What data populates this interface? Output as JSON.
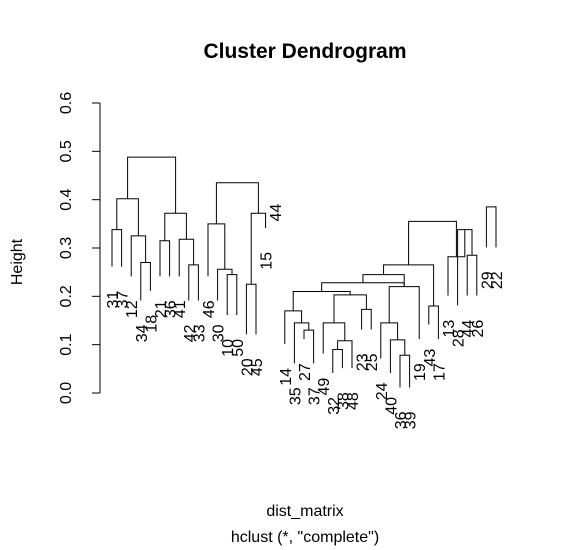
{
  "chart_data": {
    "type": "dendrogram",
    "title": "Cluster Dendrogram",
    "xlabel": "dist_matrix",
    "sublabel": "hclust (*, \"complete\")",
    "ylabel": "Height",
    "ylim": [
      0,
      0.6
    ],
    "yticks": [
      0.0,
      0.1,
      0.2,
      0.3,
      0.4,
      0.5,
      0.6
    ],
    "ytick_labels": [
      "0.0",
      "0.1",
      "0.2",
      "0.3",
      "0.4",
      "0.5",
      "0.6"
    ],
    "grid": false,
    "leaf_order": [
      "31",
      "37",
      "12",
      "34",
      "18",
      "21",
      "36",
      "41",
      "42",
      "33",
      "46",
      "30",
      "10",
      "50",
      "20",
      "45",
      "15",
      "44",
      "14",
      "35",
      "27",
      "37",
      "49",
      "32",
      "38",
      "48",
      "23",
      "25",
      "24",
      "40",
      "36",
      "39",
      "19",
      "43",
      "17",
      "13",
      "28",
      "44",
      "26",
      "29",
      "22"
    ],
    "leaf_label_bottom": [
      0.22,
      0.22,
      0.2,
      0.15,
      0.17,
      0.2,
      0.2,
      0.2,
      0.15,
      0.15,
      0.2,
      0.15,
      0.12,
      0.12,
      0.08,
      0.08,
      0.3,
      0.4,
      0.06,
      0.02,
      0.07,
      0.02,
      0.04,
      0.0,
      0.01,
      0.01,
      0.09,
      0.09,
      0.03,
      0.0,
      -0.03,
      -0.03,
      0.07,
      0.1,
      0.07,
      0.16,
      0.14,
      0.16,
      0.16,
      0.26,
      0.26
    ],
    "merges": [
      {
        "h": 0.338,
        "l": 0,
        "r": 1
      },
      {
        "h": 0.27,
        "l": 3,
        "r": 4
      },
      {
        "h": 0.325,
        "l": 2,
        "r": "m1"
      },
      {
        "h": 0.402,
        "l": "m0",
        "r": "m2"
      },
      {
        "h": 0.315,
        "l": 5,
        "r": 6
      },
      {
        "h": 0.265,
        "l": 8,
        "r": 9
      },
      {
        "h": 0.318,
        "l": 7,
        "r": "m5"
      },
      {
        "h": 0.372,
        "l": "m4",
        "r": "m6"
      },
      {
        "h": 0.488,
        "l": "m3",
        "r": "m7"
      },
      {
        "h": 0.245,
        "l": 12,
        "r": 13
      },
      {
        "h": 0.256,
        "l": 11,
        "r": "m9"
      },
      {
        "h": 0.35,
        "l": 10,
        "r": "m10"
      },
      {
        "h": 0.225,
        "l": 14,
        "r": 15
      },
      {
        "h": 0.372,
        "l": 16,
        "r": "m12"
      },
      {
        "h": 0.435,
        "l": "m11",
        "r": "m13"
      },
      {
        "h": 0.13,
        "l": 20,
        "r": 21
      },
      {
        "h": 0.145,
        "l": 19,
        "r": "m15"
      },
      {
        "h": 0.17,
        "l": 18,
        "r": "m16"
      },
      {
        "h": 0.09,
        "l": 23,
        "r": 24
      },
      {
        "h": 0.108,
        "l": "m18",
        "r": 25
      },
      {
        "h": 0.145,
        "l": 22,
        "r": "m19"
      },
      {
        "h": 0.173,
        "l": 26,
        "r": 27
      },
      {
        "h": 0.203,
        "l": "m20",
        "r": "m21"
      },
      {
        "h": 0.21,
        "l": "m17",
        "r": "m22"
      },
      {
        "h": 0.078,
        "l": 30,
        "r": 31
      },
      {
        "h": 0.11,
        "l": 29,
        "r": "m24"
      },
      {
        "h": 0.145,
        "l": 28,
        "r": "m25"
      },
      {
        "h": 0.22,
        "l": "m26",
        "r": 32
      },
      {
        "h": 0.228,
        "l": "m23",
        "r": "m27"
      },
      {
        "h": 0.245,
        "l": "m28",
        "r": "m27"
      },
      {
        "h": 0.18,
        "l": 33,
        "r": 34
      },
      {
        "h": 0.265,
        "l": "m29",
        "r": "m30"
      },
      {
        "h": 0.285,
        "l": 37,
        "r": 38
      },
      {
        "h": 0.338,
        "l": 36,
        "r": "m32"
      },
      {
        "h": 0.282,
        "l": 35,
        "r": "m33"
      },
      {
        "h": 0.355,
        "l": "m31",
        "r": "m34"
      },
      {
        "h": 0.385,
        "l": "m35",
        "r": "m36"
      },
      {
        "h": 0.385,
        "l": 39,
        "r": 40
      },
      {
        "h": 0.445,
        "l": "m36",
        "r": "m37"
      },
      {
        "h": 0.485,
        "l": 17,
        "r": "m38"
      },
      {
        "h": 0.53,
        "l": "m14",
        "r": "m39"
      },
      {
        "h": 0.58,
        "l": "m8",
        "r": "m40"
      }
    ]
  }
}
